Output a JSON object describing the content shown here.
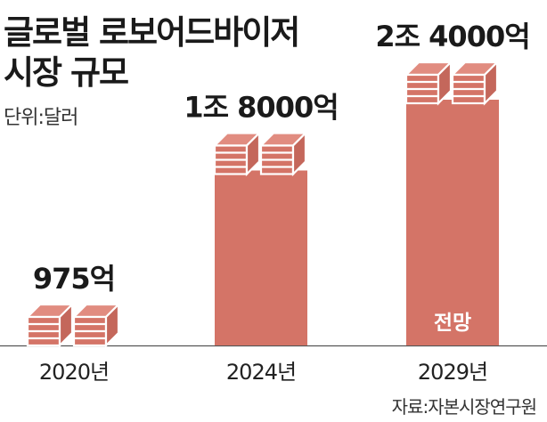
{
  "title": {
    "line1": "글로벌 로보어드바이저",
    "line2": "시장 규모"
  },
  "unit": "단위:달러",
  "source": "자료:자본시장연구원",
  "chart_data": {
    "type": "bar",
    "categories": [
      "2020년",
      "2024년",
      "2029년"
    ],
    "values": [
      975,
      18000,
      24000
    ],
    "value_unit": "억 달러",
    "data_labels": [
      "975억",
      "1조 8000억",
      "2조 4000억"
    ],
    "annotations": [
      {
        "category": "2029년",
        "text": "전망"
      }
    ],
    "ylim": [
      0,
      24000
    ],
    "grid": false,
    "colors": {
      "bar": "#d47467",
      "bar_top": "#e18c80",
      "bar_side": "#c4675b",
      "bar_stroke": "#ffffff"
    }
  }
}
